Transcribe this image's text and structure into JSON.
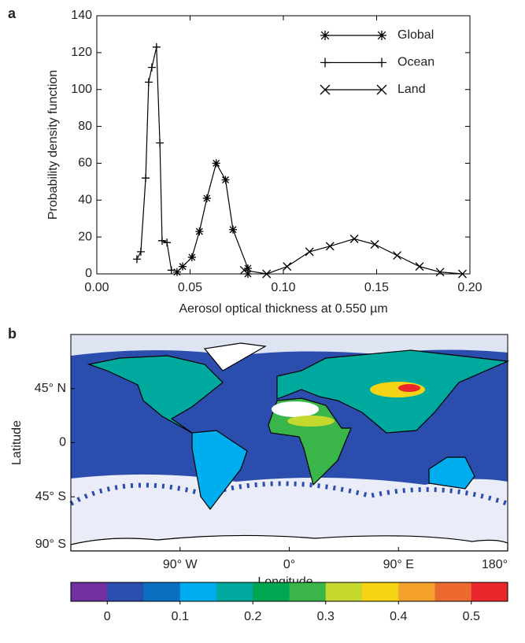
{
  "chart_data": [
    {
      "type": "line",
      "label": "a",
      "xlabel": "Aerosol optical thickness at 0.550 µm",
      "ylabel": "Probability density function",
      "xlim": [
        0,
        0.2
      ],
      "xticks": [
        {
          "value": 0,
          "label": "0.00"
        },
        {
          "value": 0.05,
          "label": "0.05"
        },
        {
          "value": 0.1,
          "label": "0.10"
        },
        {
          "value": 0.15,
          "label": "0.15"
        },
        {
          "value": 0.2,
          "label": "0.20"
        }
      ],
      "ylim": [
        0,
        140
      ],
      "yticks": [
        0,
        20,
        40,
        60,
        80,
        100,
        120,
        140
      ],
      "legend": "top-right",
      "series": [
        {
          "name": "Global",
          "marker": "asterisk",
          "color": "#000000",
          "x": [
            0.043,
            0.046,
            0.051,
            0.055,
            0.059,
            0.064,
            0.069,
            0.073,
            0.081,
            0.081
          ],
          "values": [
            1,
            4,
            9,
            23,
            41,
            60,
            51,
            24,
            3,
            0
          ]
        },
        {
          "name": "Ocean",
          "marker": "plus",
          "color": "#000000",
          "x": [
            0.0215,
            0.0236,
            0.0262,
            0.0278,
            0.0295,
            0.032,
            0.0338,
            0.035,
            0.0376,
            0.04
          ],
          "values": [
            8,
            12,
            52,
            104,
            112,
            123,
            71,
            18,
            17,
            2
          ]
        },
        {
          "name": "Land",
          "marker": "x",
          "color": "#000000",
          "x": [
            0.079,
            0.091,
            0.102,
            0.114,
            0.125,
            0.138,
            0.149,
            0.161,
            0.173,
            0.184,
            0.196
          ],
          "values": [
            2,
            0,
            4,
            12,
            15,
            19,
            16,
            10,
            4,
            1,
            0
          ]
        }
      ]
    },
    {
      "type": "map",
      "label": "b",
      "xlabel": "Longitude",
      "ylabel": "Latitude",
      "xlim": [
        -180,
        180
      ],
      "xticks": [
        {
          "value": -90,
          "label": "90° W"
        },
        {
          "value": 0,
          "label": "0°"
        },
        {
          "value": 90,
          "label": "90° E"
        },
        {
          "value": 180,
          "label": "180°"
        }
      ],
      "ylim": [
        -90,
        90
      ],
      "yticks": [
        {
          "value": 45,
          "label": "45° N"
        },
        0,
        {
          "value": -45,
          "label": "45° S"
        },
        {
          "value": -90,
          "label": "90° S"
        }
      ],
      "colorbar": {
        "lim": [
          -0.05,
          0.55
        ],
        "colors": [
          "#7030a0",
          "#2b4eae",
          "#0a6fc0",
          "#00aeef",
          "#00a99d",
          "#00a651",
          "#39b54a",
          "#c4d82e",
          "#f5d315",
          "#f4a12c",
          "#ec6a30",
          "#e8262b"
        ],
        "ticks": [
          0,
          0.1,
          0.2,
          0.3,
          0.4,
          0.5
        ]
      }
    }
  ]
}
